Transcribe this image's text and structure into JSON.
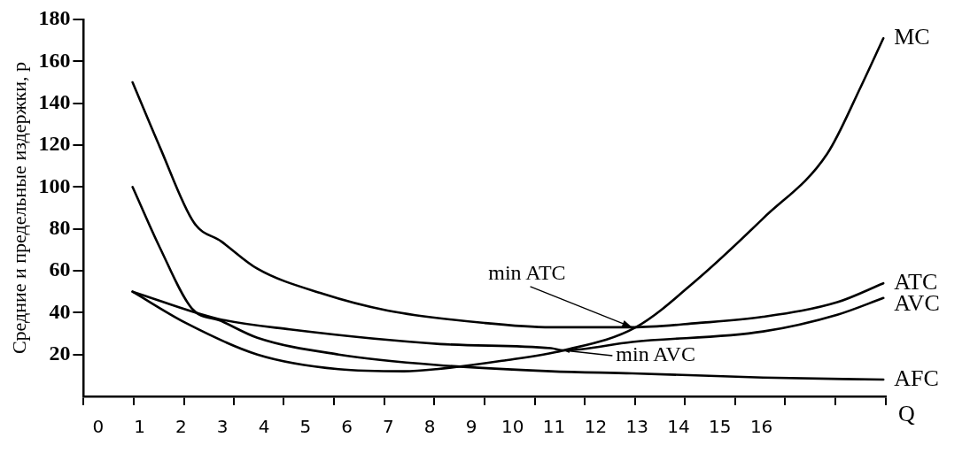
{
  "chart_data": {
    "type": "line",
    "ylabel": "Средние и предельные издержки, р",
    "xlabel": "Q",
    "xlim": [
      -0.35,
      19
    ],
    "xticks": [
      0,
      1,
      2,
      3,
      4,
      5,
      6,
      7,
      8,
      9,
      10,
      11,
      12,
      13,
      14,
      15,
      16,
      {
        "value": -0.35,
        "label": null
      },
      {
        "value": 0.86,
        "label": null
      },
      {
        "value": 2.07,
        "label": null
      },
      {
        "value": 3.28,
        "label": null
      },
      {
        "value": 4.48,
        "label": null
      },
      {
        "value": 5.69,
        "label": null
      },
      {
        "value": 6.9,
        "label": null
      },
      {
        "value": 8.11,
        "label": null
      },
      {
        "value": 9.32,
        "label": null
      },
      {
        "value": 10.53,
        "label": null
      },
      {
        "value": 11.74,
        "label": null
      },
      {
        "value": 12.95,
        "label": null
      },
      {
        "value": 14.15,
        "label": null
      },
      {
        "value": 15.36,
        "label": null
      },
      {
        "value": 16.57,
        "label": null
      },
      {
        "value": 17.78,
        "label": null
      },
      {
        "value": 18.99,
        "label": null
      }
    ],
    "ylim": [
      0,
      180
    ],
    "yticks": [
      20,
      40,
      60,
      80,
      100,
      120,
      140,
      160,
      180
    ],
    "grid": false,
    "legend": false,
    "marker": "none",
    "line_style": "solid",
    "series": [
      {
        "name": "MC",
        "color": "#000000",
        "x": [
          0.83,
          2.12,
          3.84,
          5.8,
          7.38,
          8.16,
          9.74,
          11.23,
          12.97,
          14.46,
          16.04,
          17.59,
          18.4,
          18.94
        ],
        "values": [
          50,
          35,
          20,
          13,
          12,
          13,
          17,
          22,
          33,
          56,
          85,
          116,
          148,
          171
        ]
      },
      {
        "name": "ATC",
        "color": "#000000",
        "x": [
          0.83,
          1.49,
          2.31,
          2.97,
          3.84,
          5.42,
          6.98,
          9.34,
          10.92,
          12.88,
          14.46,
          16.04,
          17.83,
          18.94
        ],
        "values": [
          150,
          119,
          83,
          74,
          61,
          49,
          41,
          35,
          33,
          33,
          35,
          38,
          45,
          54
        ]
      },
      {
        "name": "AVC",
        "color": "#000000",
        "x": [
          0.83,
          2.9,
          4.62,
          8.25,
          10.92,
          11.23,
          12.88,
          16.04,
          17.83,
          18.94
        ],
        "values": [
          50,
          37,
          32,
          25,
          23,
          22,
          26,
          31,
          39,
          47
        ]
      },
      {
        "name": "AFC",
        "color": "#000000",
        "x": [
          0.83,
          1.49,
          2.26,
          2.97,
          3.84,
          5.8,
          8.16,
          10.92,
          12.88,
          16.04,
          18.94
        ],
        "values": [
          100,
          71,
          42,
          36,
          28,
          20,
          15,
          12,
          11,
          9,
          8
        ]
      }
    ],
    "annotations": [
      {
        "text": "min ATC",
        "x": 12.88,
        "y": 33
      },
      {
        "text": "min AVC",
        "x": 11.23,
        "y": 22
      }
    ]
  }
}
